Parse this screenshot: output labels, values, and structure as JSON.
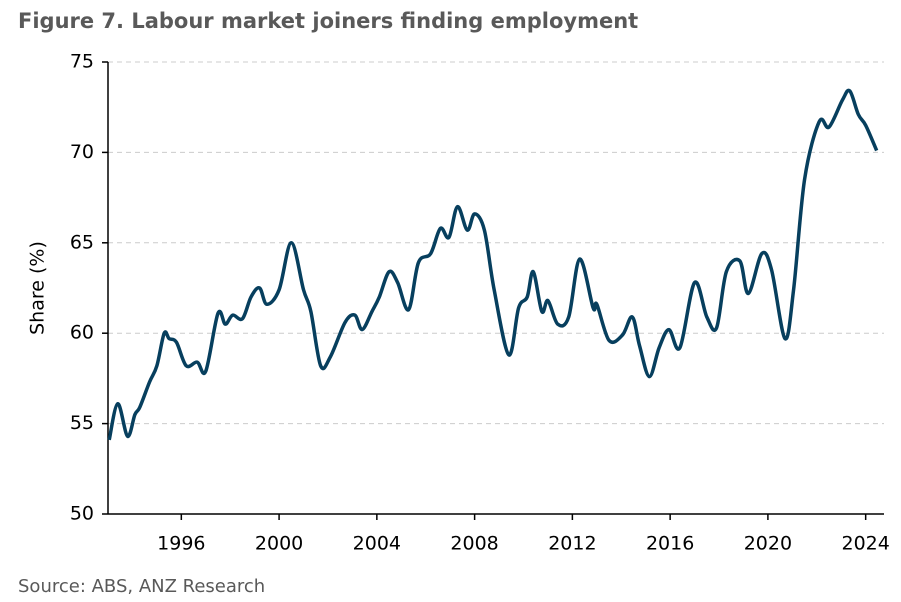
{
  "chart_data": {
    "type": "line",
    "title": "Figure 7. Labour market joiners finding employment",
    "y_label": "Share (%)",
    "source": "Source: ABS, ANZ Research",
    "x": [
      1993.05,
      1993.4,
      1993.8,
      1994.1,
      1994.3,
      1994.7,
      1995.0,
      1995.3,
      1995.5,
      1995.8,
      1996.2,
      1996.65,
      1997.0,
      1997.5,
      1997.8,
      1998.1,
      1998.5,
      1998.85,
      1999.2,
      1999.5,
      2000.0,
      2000.5,
      2001.0,
      2001.3,
      2001.7,
      2002.1,
      2002.7,
      2003.1,
      2003.4,
      2003.8,
      2004.1,
      2004.5,
      2004.85,
      2005.3,
      2005.7,
      2006.2,
      2006.6,
      2006.95,
      2007.3,
      2007.7,
      2008.0,
      2008.4,
      2008.8,
      2009.4,
      2009.8,
      2010.15,
      2010.4,
      2010.75,
      2011.0,
      2011.4,
      2011.85,
      2012.3,
      2012.85,
      2013.0,
      2013.5,
      2014.05,
      2014.45,
      2014.75,
      2015.15,
      2015.55,
      2015.95,
      2016.4,
      2017.0,
      2017.5,
      2017.9,
      2018.3,
      2018.85,
      2019.2,
      2019.75,
      2020.15,
      2020.7,
      2021.05,
      2021.5,
      2022.1,
      2022.5,
      2023.05,
      2023.35,
      2023.7,
      2024.0,
      2024.45
    ],
    "series": [
      {
        "name": "Share",
        "color": "#073f5e",
        "values": [
          54.1,
          56.1,
          54.3,
          55.5,
          55.9,
          57.3,
          58.2,
          60.0,
          59.7,
          59.5,
          58.2,
          58.4,
          57.9,
          61.1,
          60.5,
          61.0,
          60.8,
          62.0,
          62.5,
          61.6,
          62.4,
          65.0,
          62.4,
          61.2,
          58.2,
          58.7,
          60.6,
          61.0,
          60.2,
          61.2,
          62.0,
          63.4,
          62.8,
          61.3,
          63.9,
          64.4,
          65.8,
          65.3,
          67.0,
          65.7,
          66.6,
          65.7,
          62.4,
          58.8,
          61.4,
          62.0,
          63.4,
          61.2,
          61.8,
          60.5,
          60.9,
          64.1,
          61.4,
          61.6,
          59.6,
          59.9,
          60.9,
          59.3,
          57.6,
          59.2,
          60.2,
          59.2,
          62.8,
          60.9,
          60.3,
          63.4,
          64.0,
          62.2,
          64.4,
          63.5,
          59.7,
          62.4,
          68.5,
          71.7,
          71.4,
          72.9,
          73.4,
          72.1,
          71.5,
          70.1
        ]
      }
    ],
    "xlim": [
      1993,
      2024.75
    ],
    "xticks": [
      1996,
      2000,
      2004,
      2008,
      2012,
      2016,
      2020,
      2024
    ],
    "ylim": [
      50,
      75
    ],
    "yticks": [
      50,
      55,
      60,
      65,
      70,
      75
    ],
    "grid": true
  }
}
